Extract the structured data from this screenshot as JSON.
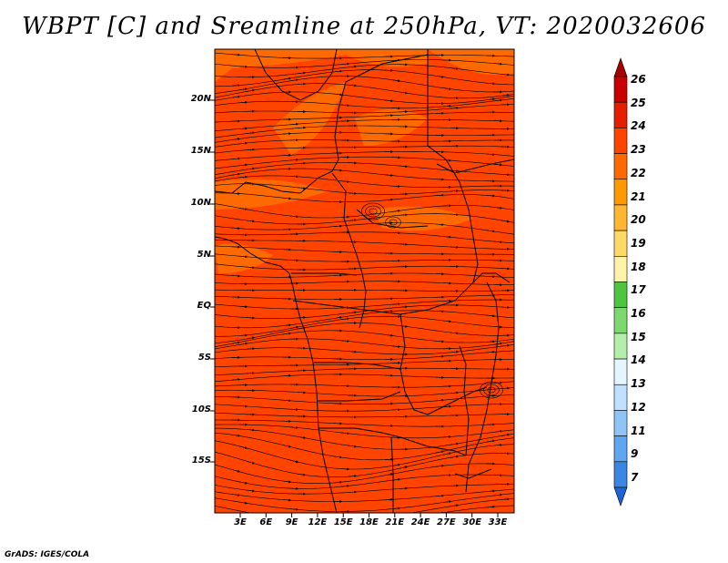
{
  "title": "WBPT [C] and Sreamline at 250hPa, VT: 2020032606",
  "credit": "GrADS: IGES/COLA",
  "map": {
    "field_fill_color": "#ff4400",
    "accent_color": "#ff6a00",
    "lat_labels": [
      "20N",
      "15N",
      "10N",
      "5N",
      "EQ",
      "5S",
      "10S",
      "15S"
    ],
    "lon_labels": [
      "3E",
      "6E",
      "9E",
      "12E",
      "15E",
      "18E",
      "21E",
      "24E",
      "27E",
      "30E",
      "33E"
    ]
  },
  "colorbar": {
    "levels": [
      "26",
      "25",
      "24",
      "23",
      "22",
      "21",
      "20",
      "19",
      "18",
      "17",
      "16",
      "15",
      "14",
      "13",
      "12",
      "11",
      "9",
      "7"
    ],
    "colors": [
      "#a50000",
      "#c80000",
      "#e61e00",
      "#ff4400",
      "#ff6a00",
      "#ff9900",
      "#ffb733",
      "#ffd966",
      "#fff3a8",
      "#4fc43f",
      "#7ed870",
      "#b5eeaa",
      "#e3f6ff",
      "#bfe0ff",
      "#8fc4f7",
      "#5ea6ef",
      "#3a86e3",
      "#1d63d1"
    ]
  }
}
